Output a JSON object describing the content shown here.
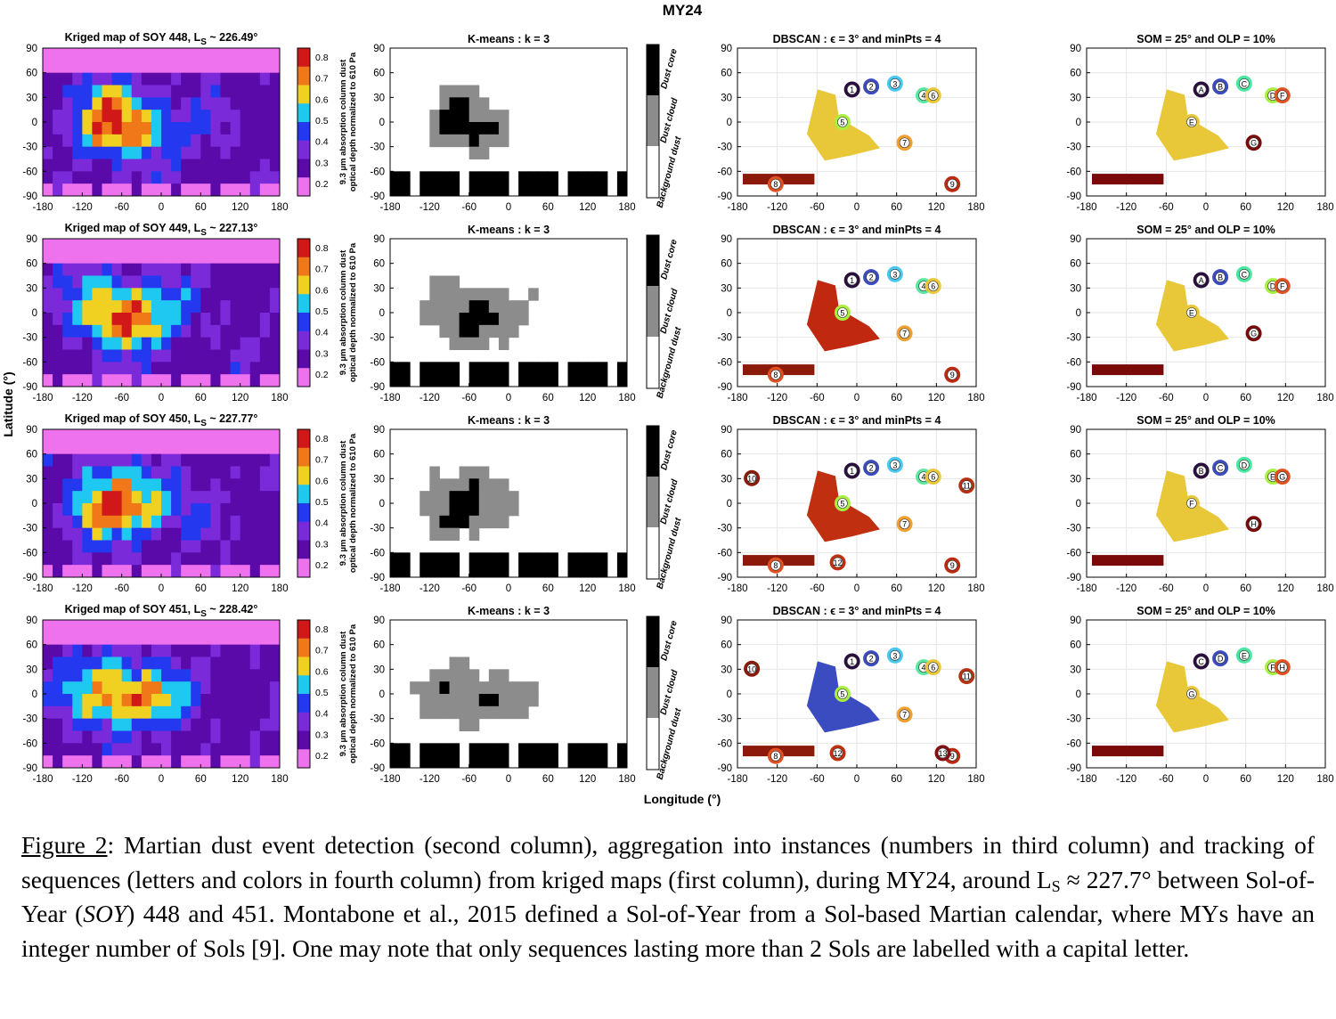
{
  "figure": {
    "title": "MY24",
    "ylabel": "Latitude (°)",
    "xlabel": "Longitude (°)",
    "x_ticks": [
      "-180",
      "-120",
      "-60",
      "0",
      "60",
      "120",
      "180"
    ],
    "y_ticks": [
      "90",
      "60",
      "30",
      "0",
      "-30",
      "-60",
      "-90"
    ],
    "colorbar_ticks": [
      "0.8",
      "0.7",
      "0.6",
      "0.5",
      "0.4",
      "0.3",
      "0.2"
    ],
    "colorbar_label_line1": "9.3 µm absorption column dust",
    "colorbar_label_line2": "optical depth normalized to 610 Pa",
    "class_labels": [
      "Dust core",
      "Dust cloud",
      "Background dust"
    ],
    "column_titles": {
      "kmeans": "K-means : k = 3",
      "dbscan": "DBSCAN : ϵ = 3° and minPts = 4",
      "som": "SOM = 25° and OLP = 10%"
    },
    "rows": [
      {
        "title_prefix": "Kriged map of SOY 448, L",
        "title_suffix": " ~ 226.49°",
        "dbscan_labels": [
          "1",
          "2",
          "3",
          "4",
          "5",
          "6",
          "7",
          "8",
          "9"
        ],
        "som_labels": [
          "A",
          "B",
          "C",
          "D",
          "E",
          "F",
          "G"
        ]
      },
      {
        "title_prefix": "Kriged map of SOY 449, L",
        "title_suffix": " ~ 227.13°",
        "dbscan_labels": [
          "1",
          "2",
          "3",
          "4",
          "5",
          "6",
          "7",
          "8",
          "9"
        ],
        "som_labels": [
          "A",
          "B",
          "C",
          "D",
          "E",
          "F",
          "G"
        ]
      },
      {
        "title_prefix": "Kriged map of SOY 450, L",
        "title_suffix": " ~ 227.77°",
        "dbscan_labels": [
          "1",
          "2",
          "3",
          "4",
          "5",
          "6",
          "7",
          "8",
          "9",
          "10",
          "11",
          "12"
        ],
        "som_labels": [
          "B",
          "C",
          "D",
          "E",
          "F",
          "G",
          "H"
        ]
      },
      {
        "title_prefix": "Kriged map of SOY 451, L",
        "title_suffix": " ~ 228.42°",
        "dbscan_labels": [
          "1",
          "2",
          "3",
          "4",
          "5",
          "6",
          "7",
          "8",
          "9",
          "10",
          "11",
          "12",
          "13"
        ],
        "som_labels": [
          "C",
          "D",
          "E",
          "F",
          "G",
          "H"
        ]
      }
    ],
    "colors": {
      "polar_pink": "#ee72ee",
      "deep_purple": "#5a0aa8",
      "purple": "#7a2ad8",
      "blue": "#2438f0",
      "cyan": "#1ec8f0",
      "yellow": "#f0d020",
      "orange": "#f07818",
      "red": "#d01818",
      "core": "#000000",
      "cloud": "#8c8c8c",
      "background": "#ffffff"
    }
  },
  "caption": {
    "label": "Figure 2",
    "p1": ": Martian dust event detection (second column), aggregation into instances (numbers in third column) and tracking of sequences (letters and colors in fourth column) from kriged maps (first column), during MY24, around L",
    "sub": "S",
    "p2": " ≈ 227.7° between Sol-of-Year (",
    "soy": "SOY",
    "p3": ") 448 and 451. Montabone et al., 2015 defined a Sol-of-Year from a Sol-based Martian calendar, where MYs have an integer number of Sols [9]. One may note that only sequences lasting more than 2 Sols are labelled with a capital letter."
  }
}
